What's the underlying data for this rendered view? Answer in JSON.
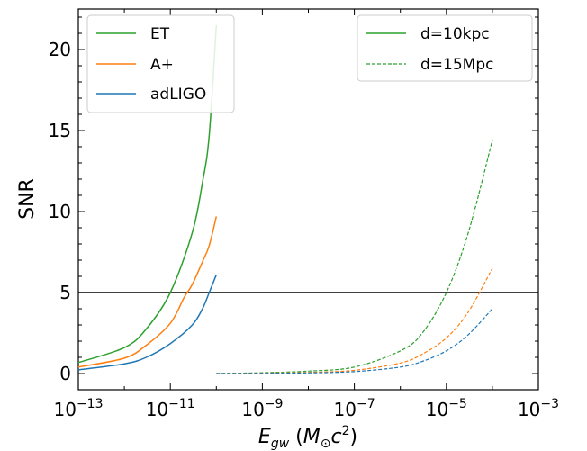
{
  "chart_data": {
    "type": "line",
    "xscale": "log",
    "xlim": [
      1e-13,
      0.001
    ],
    "ylim": [
      -1,
      22.5
    ],
    "xlabel": "",
    "ylabel": "SNR",
    "x_ticks": [
      "-13",
      "-11",
      "-9",
      "-7",
      "-5",
      "-3"
    ],
    "y_ticks": [
      "0",
      "5",
      "10",
      "15",
      "20"
    ],
    "threshold": 5,
    "series": [
      {
        "name": "ET",
        "color": "#2ca02c",
        "style": "solid",
        "x": [
          1e-13,
          1e-12,
          3e-12,
          1e-11,
          3e-11,
          5e-11,
          7e-11,
          1e-10
        ],
        "y": [
          0.68,
          1.6,
          2.75,
          5.0,
          8.7,
          11.8,
          14.7,
          21.5
        ]
      },
      {
        "name": "A+",
        "color": "#ff7f0e",
        "style": "solid",
        "x": [
          1e-13,
          1e-12,
          3e-12,
          1e-11,
          2e-11,
          3e-11,
          5e-11,
          7e-11,
          1e-10
        ],
        "y": [
          0.4,
          0.95,
          1.75,
          3.1,
          4.7,
          5.5,
          6.9,
          7.9,
          9.7
        ]
      },
      {
        "name": "adLIGO",
        "color": "#1f77b4",
        "style": "solid",
        "x": [
          1e-13,
          1e-12,
          3e-12,
          1e-11,
          3e-11,
          5e-11,
          7e-11,
          1e-10
        ],
        "y": [
          0.23,
          0.6,
          1.0,
          1.85,
          3.0,
          4.0,
          5.0,
          6.1
        ]
      },
      {
        "name": "",
        "color": "#2ca02c",
        "style": "dashed",
        "x": [
          1e-10,
          1e-09,
          1e-08,
          1e-07,
          1e-06,
          3e-06,
          1e-05,
          3e-05,
          0.0001
        ],
        "y": [
          0,
          0.05,
          0.15,
          0.4,
          1.4,
          2.5,
          5.0,
          8.7,
          14.4
        ]
      },
      {
        "name": "",
        "color": "#ff7f0e",
        "style": "dashed",
        "x": [
          1e-10,
          1e-09,
          1e-08,
          1e-07,
          1e-06,
          3e-06,
          1e-05,
          3e-05,
          0.0001
        ],
        "y": [
          0,
          0.02,
          0.07,
          0.2,
          0.65,
          1.2,
          2.2,
          3.8,
          6.5
        ]
      },
      {
        "name": "",
        "color": "#1f77b4",
        "style": "dashed",
        "x": [
          1e-10,
          1e-09,
          1e-08,
          1e-07,
          1e-06,
          3e-06,
          1e-05,
          3e-05,
          0.0001
        ],
        "y": [
          0,
          0.01,
          0.04,
          0.12,
          0.4,
          0.75,
          1.4,
          2.4,
          4.0
        ]
      }
    ],
    "legend_detectors": {
      "placement": "top-left",
      "entries": [
        {
          "label": "ET",
          "color": "#2ca02c"
        },
        {
          "label": "A+",
          "color": "#ff7f0e"
        },
        {
          "label": "adLIGO",
          "color": "#1f77b4"
        }
      ]
    },
    "legend_distance": {
      "placement": "top-right",
      "entries": [
        {
          "label": "d=10kpc",
          "color": "#2ca02c",
          "style": "solid"
        },
        {
          "label": "d=15Mpc",
          "color": "#2ca02c",
          "style": "dashed"
        }
      ]
    }
  }
}
